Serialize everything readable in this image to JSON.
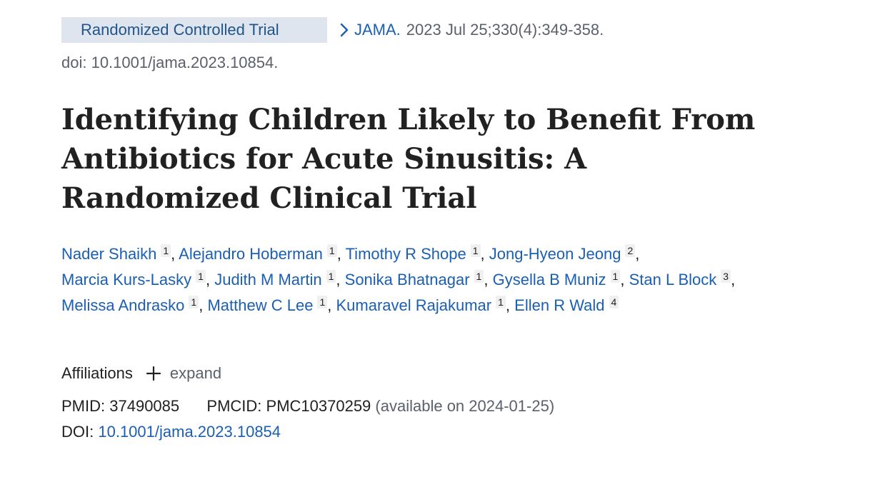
{
  "citation": {
    "publication_type": "Randomized Controlled Trial",
    "journal": "JAMA.",
    "date_volume_pages": "2023 Jul 25;330(4):349-358.",
    "doi_text": "doi: 10.1001/jama.2023.10854."
  },
  "title": "Identifying Children Likely to Benefit From Antibiotics for Acute Sinusitis: A Randomized Clinical Trial",
  "authors": [
    {
      "name": "Nader Shaikh",
      "aff": "1"
    },
    {
      "name": "Alejandro Hoberman",
      "aff": "1"
    },
    {
      "name": "Timothy R Shope",
      "aff": "1"
    },
    {
      "name": "Jong-Hyeon Jeong",
      "aff": "2"
    },
    {
      "name": "Marcia Kurs-Lasky",
      "aff": "1"
    },
    {
      "name": "Judith M Martin",
      "aff": "1"
    },
    {
      "name": "Sonika Bhatnagar",
      "aff": "1"
    },
    {
      "name": "Gysella B Muniz",
      "aff": "1"
    },
    {
      "name": "Stan L Block",
      "aff": "3"
    },
    {
      "name": "Melissa Andrasko",
      "aff": "1"
    },
    {
      "name": "Matthew C Lee",
      "aff": "1"
    },
    {
      "name": "Kumaravel Rajakumar",
      "aff": "1"
    },
    {
      "name": "Ellen R Wald",
      "aff": "4"
    }
  ],
  "affiliations": {
    "label": "Affiliations",
    "expand_label": "expand",
    "expand_icon": "plus-icon"
  },
  "identifiers": {
    "pmid_label": "PMID:",
    "pmid": "37490085",
    "pmcid_label": "PMCID:",
    "pmcid": "PMC10370259",
    "pmc_availability": "(available on 2024-01-25)",
    "doi_label": "DOI:",
    "doi": "10.1001/jama.2023.10854"
  },
  "colors": {
    "link": "#1a5fb4",
    "badge_bg": "#dfe5ee",
    "muted_text": "#5b616b"
  }
}
